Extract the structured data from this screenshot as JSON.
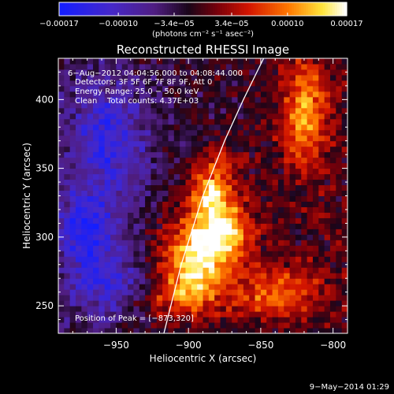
{
  "chart_data": {
    "type": "heatmap",
    "title": "Reconstructed RHESSI Image",
    "xlabel": "Heliocentric X (arcsec)",
    "ylabel": "Heliocentric Y (arcsec)",
    "xlim": [
      -990,
      -790
    ],
    "ylim": [
      230,
      430
    ],
    "x_ticks": [
      -950,
      -900,
      -850,
      -800
    ],
    "x_tick_labels": [
      "−950",
      "−900",
      "−850",
      "−800"
    ],
    "y_ticks": [
      250,
      300,
      350,
      400
    ],
    "y_tick_labels": [
      "250",
      "300",
      "350",
      "400"
    ],
    "colorbar": {
      "min": -0.00017,
      "max": 0.00017,
      "ticks": [
        -0.00017,
        -0.0001,
        -3.4e-05,
        3.4e-05,
        0.0001,
        0.00017
      ],
      "tick_labels": [
        "−0.00017",
        "−0.00010",
        "−3.4e−05",
        "3.4e−05",
        "0.00010",
        "0.00017"
      ],
      "unit": "(photons cm⁻² s⁻¹ asec⁻²)"
    },
    "annotations": {
      "time_range": "6−Aug−2012 04:04:56.000 to 04:08:44.000",
      "detectors": "Detectors: 3F 5F 6F 7F 8F 9F, Att 0",
      "energy": "Energy Range: 25.0 − 50.0 keV",
      "method": "Clean",
      "total_counts": "Total counts: 4.37E+03",
      "peak": "Position of Peak = [−873,320]"
    },
    "peak": {
      "x": -873,
      "y": 320
    },
    "limb_points": [
      [
        -917,
        230
      ],
      [
        -905,
        280
      ],
      [
        -890,
        330
      ],
      [
        -875,
        370
      ],
      [
        -862,
        400
      ],
      [
        -848,
        430
      ]
    ],
    "hot_regions": [
      {
        "x": -895,
        "y": 285,
        "sx": 16,
        "sy": 22,
        "v": 0.00017
      },
      {
        "x": -875,
        "y": 305,
        "sx": 14,
        "sy": 16,
        "v": 0.00014
      },
      {
        "x": -885,
        "y": 330,
        "sx": 10,
        "sy": 10,
        "v": 0.00011
      },
      {
        "x": -820,
        "y": 390,
        "sx": 12,
        "sy": 28,
        "v": 0.00012
      },
      {
        "x": -840,
        "y": 260,
        "sx": 22,
        "sy": 14,
        "v": 0.0001
      },
      {
        "x": -880,
        "y": 350,
        "sx": 12,
        "sy": 12,
        "v": 8e-05
      },
      {
        "x": -910,
        "y": 255,
        "sx": 18,
        "sy": 12,
        "v": 7e-05
      }
    ],
    "cold_regions": [
      {
        "x": -955,
        "y": 370,
        "sx": 20,
        "sy": 30,
        "v": -0.0001
      },
      {
        "x": -970,
        "y": 305,
        "sx": 14,
        "sy": 18,
        "v": -0.00012
      },
      {
        "x": -955,
        "y": 265,
        "sx": 18,
        "sy": 16,
        "v": -8e-05
      }
    ]
  },
  "footer": {
    "date": "9−May−2014 01:29"
  }
}
